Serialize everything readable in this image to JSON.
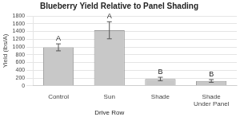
{
  "chart_data": {
    "type": "bar",
    "title": "Blueberry Yield Relative to Panel Shading",
    "ylabel": "Yield (lbs/A)",
    "categories": [
      "Control",
      "Sun",
      "Shade",
      "Shade\nUnder Panel"
    ],
    "values": [
      990,
      1430,
      175,
      125
    ],
    "errors": [
      90,
      220,
      45,
      35
    ],
    "letters": [
      "A",
      "A",
      "B",
      "B"
    ],
    "annotation": "Drive Row",
    "color": "#c8c8c8",
    "ylim": [
      0,
      1800
    ],
    "yticks": [
      0,
      200,
      400,
      600,
      800,
      1000,
      1200,
      1400,
      1600,
      1800
    ],
    "grid": true
  }
}
